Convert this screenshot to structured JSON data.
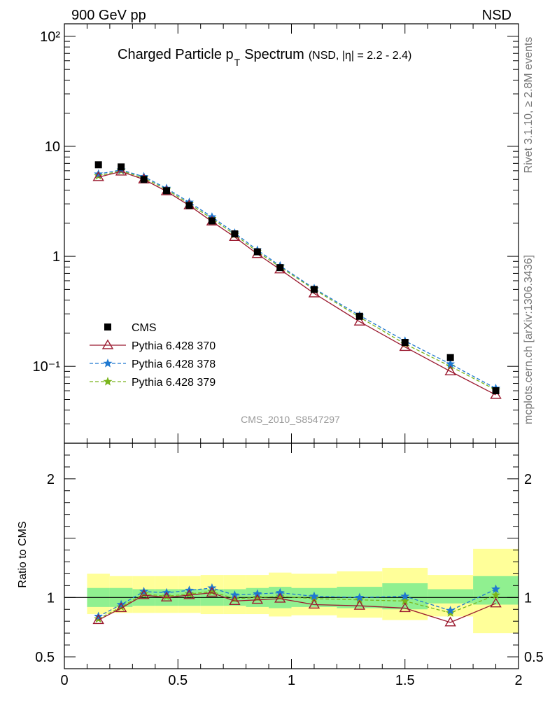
{
  "header": {
    "left": "900 GeV pp",
    "right": "NSD"
  },
  "side_labels": {
    "top": "Rivet 3.1.10, ≥ 2.8M events",
    "bottom": "mcplots.cern.ch [arXiv:1306.3436]"
  },
  "chart_data": {
    "type": "line",
    "title": "Charged Particle p",
    "title_sub": "T",
    "title_suffix": "Spectrum",
    "title_extra": "(NSD, |η| = 2.2 - 2.4)",
    "watermark": "CMS_2010_S8547297",
    "xlim": [
      0,
      2
    ],
    "ylim": [
      0.02,
      130
    ],
    "yscale": "log",
    "ratio_ylabel": "Ratio to CMS",
    "ratio_ylim": [
      0.4,
      2.3
    ],
    "x_ticks": [
      "0",
      "0.5",
      "1",
      "1.5",
      "2"
    ],
    "y_ticks_main": [
      "10²",
      "10",
      "1",
      "10⁻¹"
    ],
    "y_ticks_ratio": [
      "2",
      "1",
      "0.5"
    ],
    "bins": [
      [
        0.1,
        0.2
      ],
      [
        0.2,
        0.3
      ],
      [
        0.3,
        0.4
      ],
      [
        0.4,
        0.5
      ],
      [
        0.5,
        0.6
      ],
      [
        0.6,
        0.7
      ],
      [
        0.7,
        0.8
      ],
      [
        0.8,
        0.9
      ],
      [
        0.9,
        1.0
      ],
      [
        1.0,
        1.2
      ],
      [
        1.2,
        1.4
      ],
      [
        1.4,
        1.6
      ],
      [
        1.6,
        1.8
      ],
      [
        1.8,
        2.0
      ]
    ],
    "x": [
      0.15,
      0.25,
      0.35,
      0.45,
      0.55,
      0.65,
      0.75,
      0.85,
      0.95,
      1.1,
      1.3,
      1.5,
      1.7,
      1.9
    ],
    "data": {
      "name": "CMS",
      "color": "#000000",
      "values": [
        6.8,
        6.5,
        5.0,
        3.95,
        2.9,
        2.1,
        1.6,
        1.1,
        0.79,
        0.5,
        0.285,
        0.165,
        0.12,
        0.06
      ]
    },
    "series": [
      {
        "name": "Pythia 6.428 370",
        "color": "#9b1b30",
        "marker": "triangle",
        "dash": "",
        "values": [
          5.25,
          5.9,
          5.0,
          3.9,
          2.9,
          2.07,
          1.5,
          1.05,
          0.76,
          0.46,
          0.255,
          0.15,
          0.09,
          0.055
        ],
        "ratio": [
          0.81,
          0.91,
          1.02,
          1.0,
          1.02,
          1.04,
          0.97,
          0.98,
          0.99,
          0.94,
          0.93,
          0.91,
          0.79,
          0.95
        ]
      },
      {
        "name": "Pythia 6.428 378",
        "color": "#1e78d0",
        "marker": "star",
        "dash": "5,3",
        "values": [
          5.6,
          6.1,
          5.3,
          4.15,
          3.1,
          2.28,
          1.63,
          1.14,
          0.82,
          0.51,
          0.29,
          0.17,
          0.105,
          0.063
        ],
        "ratio": [
          0.84,
          0.94,
          1.05,
          1.04,
          1.06,
          1.08,
          1.02,
          1.03,
          1.04,
          1.01,
          1.0,
          1.01,
          0.89,
          1.07
        ]
      },
      {
        "name": "Pythia 6.428 379",
        "color": "#7ab51d",
        "marker": "star",
        "dash": "5,3",
        "values": [
          5.4,
          6.0,
          5.15,
          4.05,
          3.0,
          2.2,
          1.58,
          1.1,
          0.8,
          0.5,
          0.28,
          0.16,
          0.1,
          0.061
        ],
        "ratio": [
          0.82,
          0.92,
          1.03,
          1.01,
          1.03,
          1.05,
          0.99,
          1.0,
          1.01,
          0.99,
          0.98,
          0.97,
          0.87,
          1.02
        ]
      }
    ],
    "bands": {
      "inner_color": "#90f090",
      "outer_color": "#ffff99",
      "inner": [
        [
          0.92,
          1.08
        ],
        [
          0.92,
          1.08
        ],
        [
          0.93,
          1.07
        ],
        [
          0.93,
          1.07
        ],
        [
          0.93,
          1.07
        ],
        [
          0.93,
          1.07
        ],
        [
          0.93,
          1.07
        ],
        [
          0.92,
          1.08
        ],
        [
          0.91,
          1.09
        ],
        [
          0.92,
          1.08
        ],
        [
          0.91,
          1.09
        ],
        [
          0.9,
          1.12
        ],
        [
          0.95,
          1.07
        ],
        [
          0.94,
          1.18
        ]
      ],
      "outer": [
        [
          0.86,
          1.2
        ],
        [
          0.87,
          1.18
        ],
        [
          0.87,
          1.18
        ],
        [
          0.87,
          1.18
        ],
        [
          0.87,
          1.18
        ],
        [
          0.86,
          1.19
        ],
        [
          0.86,
          1.19
        ],
        [
          0.86,
          1.19
        ],
        [
          0.84,
          1.21
        ],
        [
          0.85,
          1.2
        ],
        [
          0.83,
          1.22
        ],
        [
          0.81,
          1.25
        ],
        [
          0.84,
          1.19
        ],
        [
          0.7,
          1.41
        ]
      ]
    }
  }
}
